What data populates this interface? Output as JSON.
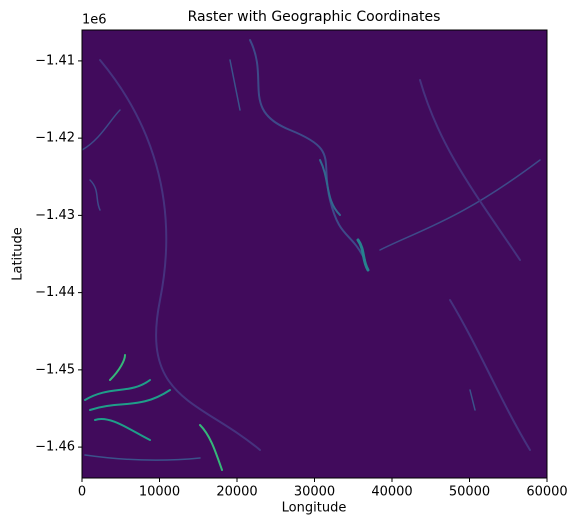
{
  "chart_data": {
    "type": "image",
    "title": "Raster with Geographic Coordinates",
    "x_label": "Longitude",
    "y_label": "Latitude",
    "y_offset_label": "1e6",
    "xlim": [
      0,
      60000
    ],
    "xticks": [
      0,
      10000,
      20000,
      30000,
      40000,
      50000,
      60000
    ],
    "ylim": [
      -1464000,
      -1406000
    ],
    "yticks": [
      {
        "value": -1410000,
        "label": "−1.41"
      },
      {
        "value": -1420000,
        "label": "−1.42"
      },
      {
        "value": -1430000,
        "label": "−1.43"
      },
      {
        "value": -1440000,
        "label": "−1.44"
      },
      {
        "value": -1450000,
        "label": "−1.45"
      },
      {
        "value": -1460000,
        "label": "−1.46"
      }
    ],
    "colormap": "viridis"
  }
}
